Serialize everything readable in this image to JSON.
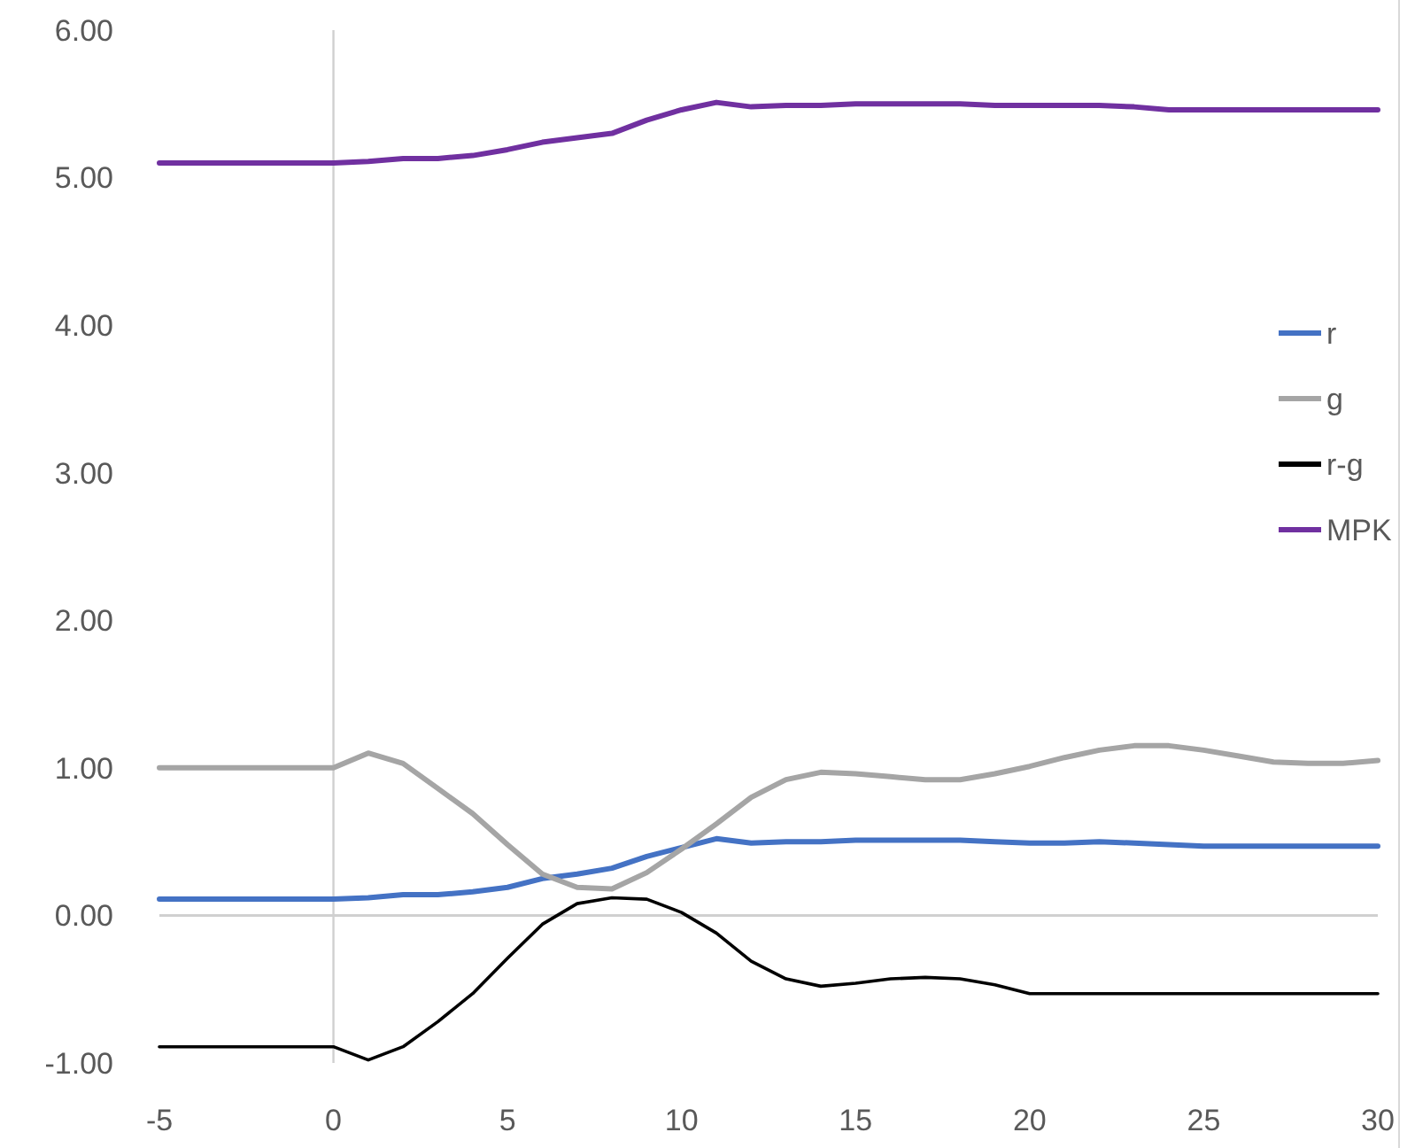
{
  "chart_data": {
    "type": "line",
    "x": [
      -5,
      -4,
      -3,
      -2,
      -1,
      0,
      1,
      2,
      3,
      4,
      5,
      6,
      7,
      8,
      9,
      10,
      11,
      12,
      13,
      14,
      15,
      16,
      17,
      18,
      19,
      20,
      21,
      22,
      23,
      24,
      25,
      26,
      27,
      28,
      29,
      30
    ],
    "series": [
      {
        "name": "r",
        "color": "#4472c4",
        "values": [
          0.11,
          0.11,
          0.11,
          0.11,
          0.11,
          0.11,
          0.12,
          0.14,
          0.14,
          0.16,
          0.19,
          0.25,
          0.28,
          0.32,
          0.4,
          0.46,
          0.52,
          0.49,
          0.5,
          0.5,
          0.51,
          0.51,
          0.51,
          0.51,
          0.5,
          0.49,
          0.49,
          0.5,
          0.49,
          0.48,
          0.47,
          0.47,
          0.47,
          0.47,
          0.47,
          0.47
        ]
      },
      {
        "name": "g",
        "color": "#a5a5a5",
        "values": [
          1.0,
          1.0,
          1.0,
          1.0,
          1.0,
          1.0,
          1.1,
          1.03,
          0.86,
          0.69,
          0.48,
          0.28,
          0.19,
          0.18,
          0.29,
          0.45,
          0.62,
          0.8,
          0.92,
          0.97,
          0.96,
          0.94,
          0.92,
          0.92,
          0.96,
          1.01,
          1.07,
          1.12,
          1.15,
          1.15,
          1.12,
          1.08,
          1.04,
          1.03,
          1.03,
          1.05
        ]
      },
      {
        "name": "r-g",
        "color": "#000000",
        "values": [
          -0.89,
          -0.89,
          -0.89,
          -0.89,
          -0.89,
          -0.89,
          -0.98,
          -0.89,
          -0.72,
          -0.53,
          -0.29,
          -0.06,
          0.08,
          0.12,
          0.11,
          0.02,
          -0.12,
          -0.31,
          -0.43,
          -0.48,
          -0.46,
          -0.43,
          -0.42,
          -0.43,
          -0.47,
          -0.53,
          -0.53,
          -0.53,
          -0.53,
          -0.53,
          -0.53,
          -0.53,
          -0.53,
          -0.53,
          -0.53,
          -0.53
        ]
      },
      {
        "name": "MPK",
        "color": "#7030a0",
        "values": [
          5.1,
          5.1,
          5.1,
          5.1,
          5.1,
          5.1,
          5.11,
          5.13,
          5.13,
          5.15,
          5.19,
          5.24,
          5.27,
          5.3,
          5.39,
          5.46,
          5.51,
          5.48,
          5.49,
          5.49,
          5.5,
          5.5,
          5.5,
          5.5,
          5.49,
          5.49,
          5.49,
          5.49,
          5.48,
          5.46,
          5.46,
          5.46,
          5.46,
          5.46,
          5.46,
          5.46
        ]
      }
    ],
    "xlim": [
      -5,
      30
    ],
    "xticks": [
      -5,
      0,
      5,
      10,
      15,
      20,
      25,
      30
    ],
    "ylim": [
      -1,
      6
    ],
    "yticks": [
      {
        "value": -1,
        "label": "-1.00"
      },
      {
        "value": 0,
        "label": "0.00"
      },
      {
        "value": 1,
        "label": "1.00"
      },
      {
        "value": 2,
        "label": "2.00"
      },
      {
        "value": 3,
        "label": "3.00"
      },
      {
        "value": 4,
        "label": "4.00"
      },
      {
        "value": 5,
        "label": "5.00"
      },
      {
        "value": 6,
        "label": "6.00"
      }
    ],
    "grid": false,
    "legend": "right",
    "marker": "none",
    "line_style": "solid"
  }
}
